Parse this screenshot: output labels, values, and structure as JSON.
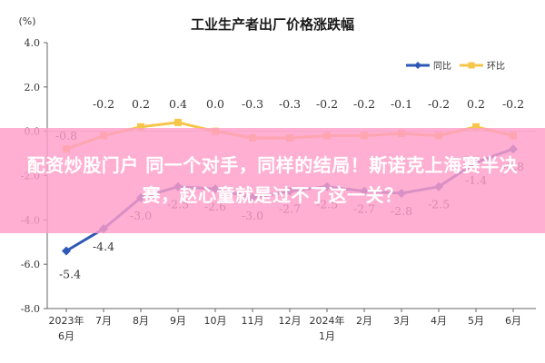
{
  "banner": {
    "text": "配资炒股门户 同一个对手，同样的结局！斯诺克上海赛半决赛，赵心童就是过不了这一关？"
  },
  "colors": {
    "yoy": "#2e58b7",
    "mom": "#f6c64a",
    "banner_bg": "#ff9ec8",
    "axis": "#666666",
    "grid": "#cccccc"
  },
  "chart_data": {
    "type": "line",
    "title": "工业生产者出厂价格涨跌幅",
    "unit": "(%)",
    "xlabel": "",
    "ylabel": "",
    "ylim": [
      -8.0,
      4.0
    ],
    "yticks": [
      "4.0",
      "2.0",
      "0.0",
      "-2.0",
      "-4.0",
      "-6.0",
      "-8.0"
    ],
    "ytick_values": [
      4,
      2,
      0,
      -2,
      -4,
      -6,
      -8
    ],
    "categories": [
      [
        "2023年",
        "6月"
      ],
      [
        "7月"
      ],
      [
        "8月"
      ],
      [
        "9月"
      ],
      [
        "10月"
      ],
      [
        "11月"
      ],
      [
        "12月"
      ],
      [
        "2024年",
        "1月"
      ],
      [
        "2月"
      ],
      [
        "3月"
      ],
      [
        "4月"
      ],
      [
        "5月"
      ],
      [
        "6月"
      ]
    ],
    "grid": false,
    "legend": "top-right",
    "series": [
      {
        "name": "同比",
        "values": [
          -5.4,
          -4.4,
          -3.0,
          -2.5,
          -2.6,
          -3.0,
          -2.7,
          -2.5,
          -2.7,
          -2.8,
          -2.5,
          -1.4,
          -0.8
        ],
        "labels": [
          "-5.4",
          "-4.4",
          "-3.0",
          "-2.5",
          "-2.6",
          "-3.0",
          "-2.7",
          "-2.5",
          "-2.7",
          "-2.8",
          "-2.5",
          "-1.4",
          "-0.8"
        ]
      },
      {
        "name": "环比",
        "values": [
          -0.8,
          -0.2,
          0.2,
          0.4,
          0.0,
          -0.3,
          -0.3,
          -0.2,
          -0.2,
          -0.1,
          -0.2,
          0.2,
          -0.2
        ],
        "labels": [
          "-0.8",
          "-0.2",
          "0.2",
          "0.4",
          "0.0",
          "-0.3",
          "-0.3",
          "-0.2",
          "-0.2",
          "-0.1",
          "-0.2",
          "0.2",
          "-0.2"
        ]
      }
    ]
  }
}
